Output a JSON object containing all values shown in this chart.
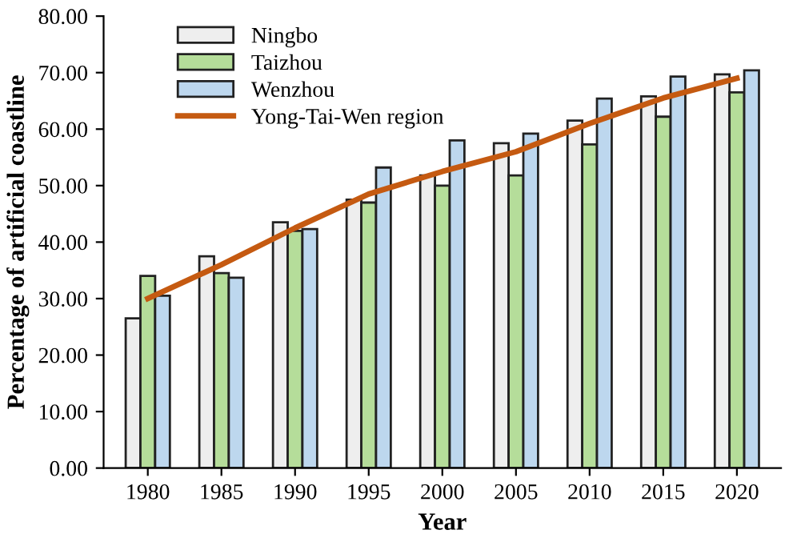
{
  "chart_data": {
    "type": "bar",
    "xlabel": "Year",
    "ylabel": "Percentage of artificial coastline",
    "categories": [
      "1980",
      "1985",
      "1990",
      "1995",
      "2000",
      "2005",
      "2010",
      "2015",
      "2020"
    ],
    "series": [
      {
        "name": "Ningbo",
        "color": "#eeeeee",
        "values": [
          26.5,
          37.5,
          43.5,
          47.5,
          51.8,
          57.5,
          61.5,
          65.8,
          69.7
        ]
      },
      {
        "name": "Taizhou",
        "color": "#b5dd9a",
        "values": [
          34.0,
          34.5,
          42.0,
          47.0,
          50.0,
          51.8,
          57.3,
          62.2,
          66.5
        ]
      },
      {
        "name": "Wenzhou",
        "color": "#bdd7ee",
        "values": [
          30.5,
          33.7,
          42.3,
          53.2,
          58.0,
          59.2,
          65.4,
          69.3,
          70.4
        ]
      },
      {
        "name": "Yong-Tai-Wen region",
        "type": "line",
        "color": "#c55a11",
        "values": [
          30.0,
          36.0,
          42.5,
          48.5,
          52.5,
          56.0,
          61.0,
          65.5,
          69.0
        ]
      }
    ],
    "ylim": [
      0,
      80
    ],
    "yticks": [
      {
        "value": 0,
        "label": "0.00"
      },
      {
        "value": 10,
        "label": "10.00"
      },
      {
        "value": 20,
        "label": "20.00"
      },
      {
        "value": 30,
        "label": "30.00"
      },
      {
        "value": 40,
        "label": "40.00"
      },
      {
        "value": 50,
        "label": "50.00"
      },
      {
        "value": 60,
        "label": "60.00"
      },
      {
        "value": 70,
        "label": "70.00"
      },
      {
        "value": 80,
        "label": "80.00"
      }
    ],
    "legend": "top left",
    "grid": false
  }
}
